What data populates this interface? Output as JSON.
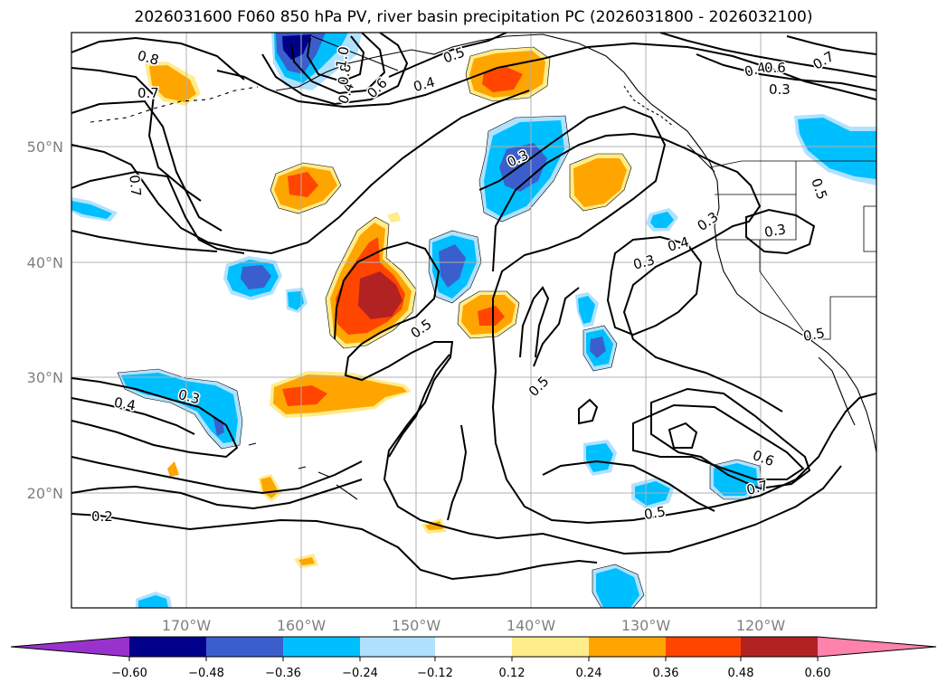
{
  "title": "2026031600 F060 850 hPa PV, river basin precipitation PC (2026031800 - 2026032100)",
  "lat_labels": [
    "50°N",
    "40°N",
    "30°N",
    "20°N"
  ],
  "lon_labels": [
    "170°W",
    "160°W",
    "150°W",
    "140°W",
    "130°W",
    "120°W"
  ],
  "contour_labels": [
    "0.8",
    "0.7",
    "0.7",
    "0.4",
    "0.3",
    "0.2",
    "0.4",
    "0.6",
    "0.8",
    "1.0",
    "0.5",
    "0.4",
    "0.3",
    "0.5",
    "0.3",
    "0.4",
    "0.3",
    "0.5",
    "0.6",
    "0.5",
    "0.4",
    "0.7",
    "0.3",
    "0.3",
    "0.5",
    "0.6",
    "0.7",
    "0.5"
  ],
  "colorbar": {
    "ticks": [
      "−0.60",
      "−0.48",
      "−0.36",
      "−0.24",
      "−0.12",
      "0.12",
      "0.24",
      "0.36",
      "0.48",
      "0.60"
    ],
    "colors": [
      "#9932cc",
      "#00008b",
      "#3a5fcd",
      "#00bfff",
      "#b0e2ff",
      "#ffffff",
      "#ffec8b",
      "#ffa500",
      "#ff4500",
      "#b22222",
      "#ff82ab"
    ]
  }
}
